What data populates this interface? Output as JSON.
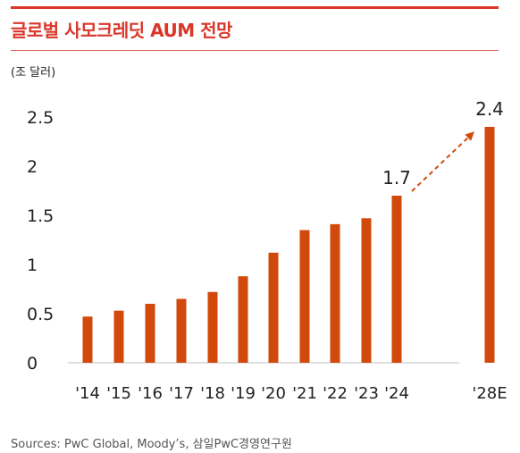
{
  "title": "글로벌 사모크레딧 AUM 전망",
  "unit": "(조 달러)",
  "source": "Sources: PwC Global, Moody’s, 삼일PwC경영연구원",
  "colors": {
    "accent": "#d9372a",
    "bar": "#d24a0b",
    "axis": "#bfbfbf",
    "text": "#222222"
  },
  "chart_data": {
    "type": "bar",
    "categories": [
      "'14",
      "'15",
      "'16",
      "'17",
      "'18",
      "'19",
      "'20",
      "'21",
      "'22",
      "'23",
      "'24",
      "'28E"
    ],
    "values": [
      0.47,
      0.53,
      0.6,
      0.65,
      0.72,
      0.88,
      1.12,
      1.35,
      1.41,
      1.47,
      1.7,
      2.4
    ],
    "ylim": [
      0,
      2.5
    ],
    "yticks": [
      "0",
      "0.5",
      "1",
      "1.5",
      "2",
      "2.5"
    ],
    "ytick_values": [
      0,
      0.5,
      1,
      1.5,
      2,
      2.5
    ],
    "data_labels": [
      {
        "category": "'24",
        "text": "1.7"
      },
      {
        "category": "'28E",
        "text": "2.4"
      }
    ],
    "annotation": "dashed arrow from '24 to '28E",
    "grid": false
  }
}
